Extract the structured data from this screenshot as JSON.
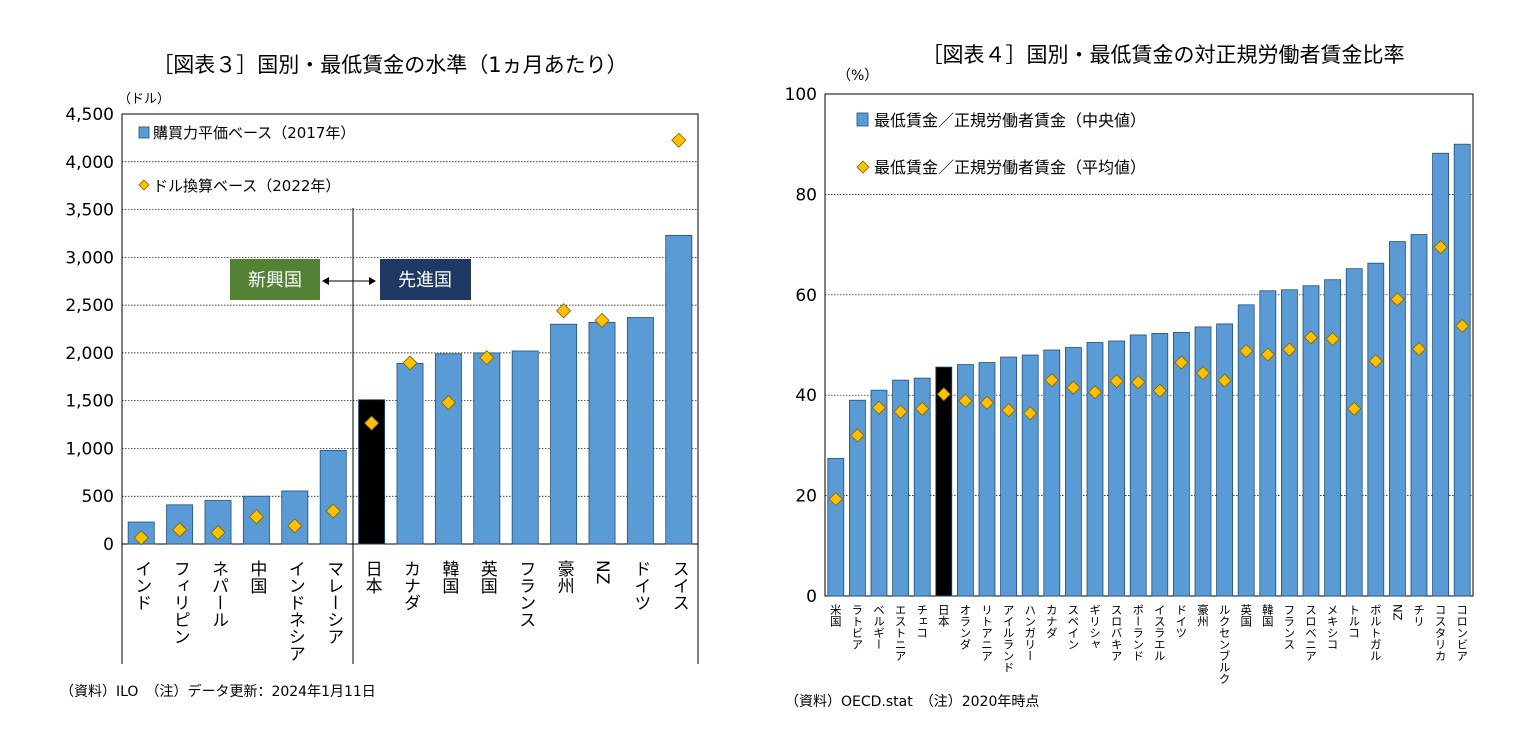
{
  "chart_data": [
    {
      "type": "bar",
      "title": "［図表３］国別・最低賃金の水準（1ヵ月あたり）",
      "ylabel": "（ドル）",
      "ylim": [
        0,
        4500
      ],
      "yticks": [
        "0",
        "500",
        "1,000",
        "1,500",
        "2,000",
        "2,500",
        "3,000",
        "3,500",
        "4,000",
        "4,500"
      ],
      "ytick_values": [
        0,
        500,
        1000,
        1500,
        2000,
        2500,
        3000,
        3500,
        4000,
        4500
      ],
      "categories": [
        "インド",
        "フィリピン",
        "ネパール",
        "中国",
        "インドネシア",
        "マレーシア",
        "日本",
        "カナダ",
        "韓国",
        "英国",
        "フランス",
        "豪州",
        "NZ",
        "ドイツ",
        "スイス"
      ],
      "series": [
        {
          "name": "購買力平価ベース（2017年）",
          "kind": "bar",
          "values": [
            230,
            410,
            455,
            500,
            555,
            980,
            1510,
            1890,
            1990,
            2000,
            2020,
            2300,
            2320,
            2370,
            3230
          ]
        },
        {
          "name": "ドル換算ベース（2022年）",
          "kind": "marker",
          "values": [
            65,
            150,
            120,
            285,
            190,
            345,
            1265,
            1895,
            1480,
            1950,
            null,
            2440,
            2340,
            null,
            4225
          ]
        }
      ],
      "highlight_category": "日本",
      "legend": [
        "購買力平価ベース（2017年）",
        "ドル換算ベース（2022年）"
      ],
      "group_labels": {
        "emerging": "新興国",
        "advanced": "先進国"
      },
      "footnote": "（資料）ILO　（注）データ更新：2024年1月11日"
    },
    {
      "type": "bar",
      "title": "［図表４］国別・最低賃金の対正規労働者賃金比率",
      "ylabel": "（%）",
      "ylim": [
        0,
        100
      ],
      "yticks": [
        "0",
        "20",
        "40",
        "60",
        "80",
        "100"
      ],
      "ytick_values": [
        0,
        20,
        40,
        60,
        80,
        100
      ],
      "categories": [
        "米国",
        "ラトビア",
        "ベルギー",
        "エストニア",
        "チェコ",
        "日本",
        "オランダ",
        "リトアニア",
        "アイルランド",
        "ハンガリー",
        "カナダ",
        "スペイン",
        "ギリシャ",
        "スロバキア",
        "ポーランド",
        "イスラエル",
        "ドイツ",
        "豪州",
        "ルクセンブルク",
        "英国",
        "韓国",
        "フランス",
        "スロベニア",
        "メキシコ",
        "トルコ",
        "ポルトガル",
        "NZ",
        "チリ",
        "コスタリカ",
        "コロンビア"
      ],
      "series": [
        {
          "name": "最低賃金／正規労働者賃金（中央値）",
          "kind": "bar",
          "values": [
            27.4,
            39.0,
            41.0,
            43.0,
            43.4,
            45.6,
            46.1,
            46.5,
            47.6,
            48.0,
            49.0,
            49.5,
            50.5,
            50.8,
            52.0,
            52.3,
            52.5,
            53.6,
            54.2,
            58.0,
            60.8,
            61.0,
            61.8,
            63.0,
            65.2,
            66.3,
            70.6,
            72.0,
            88.2,
            90.0
          ]
        },
        {
          "name": "最低賃金／正規労働者賃金（平均値）",
          "kind": "marker",
          "values": [
            19.3,
            32.0,
            37.5,
            36.7,
            37.3,
            40.2,
            38.9,
            38.5,
            37.0,
            36.4,
            43.0,
            41.5,
            40.6,
            42.8,
            42.6,
            40.9,
            46.5,
            44.4,
            42.9,
            48.8,
            48.1,
            49.1,
            51.5,
            51.2,
            37.3,
            46.8,
            59.1,
            49.2,
            69.5,
            53.8
          ]
        }
      ],
      "highlight_category": "日本",
      "legend": [
        "最低賃金／正規労働者賃金（中央値）",
        "最低賃金／正規労働者賃金（平均値）"
      ],
      "footnote": "（資料）OECD.stat　（注）2020年時点"
    }
  ],
  "colors": {
    "bar": "#5b9bd5",
    "bar_edge": "#1f4e79",
    "highlight": "#000000",
    "marker": "#ffc000",
    "marker_edge": "#7f6000",
    "emerging_box": "#548235",
    "advanced_box": "#1f3864",
    "grid": "#000000"
  }
}
